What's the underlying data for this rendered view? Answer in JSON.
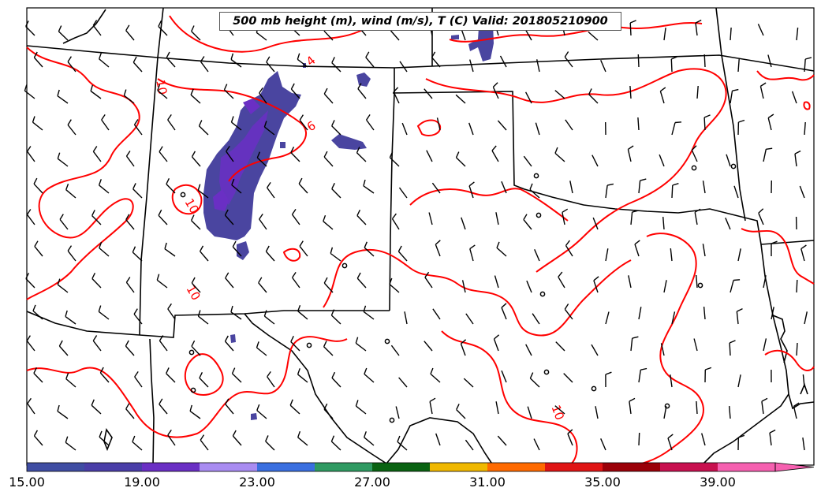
{
  "title": "500 mb height (m), wind (m/s), T (C) Valid: 201805210900",
  "colorbar": {
    "tick_labels": [
      "15.00",
      "19.00",
      "23.00",
      "27.00",
      "31.00",
      "35.00",
      "39.00"
    ],
    "colors": [
      "#3f4da3",
      "#4a3ea8",
      "#6a2fc4",
      "#a98cf2",
      "#3a6fe0",
      "#2f9a62",
      "#0a6312",
      "#f0b800",
      "#ff6a00",
      "#e01414",
      "#9b0008",
      "#c8104f",
      "#f660b0"
    ]
  },
  "contour_labels": [
    "10",
    "10",
    "10",
    "10",
    "6",
    "4"
  ],
  "colors": {
    "temperature_contour": "#ff0000",
    "wind_barb": "#000000",
    "state_border": "#000000",
    "shaded_field": "#4a45a0"
  }
}
